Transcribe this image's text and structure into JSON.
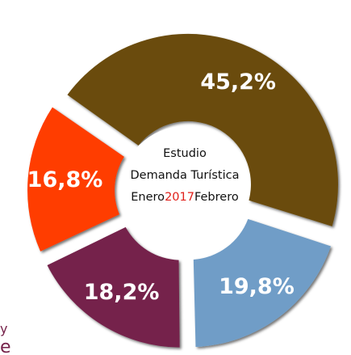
{
  "chart_data": {
    "type": "donut",
    "categories": [
      null,
      null,
      null,
      null
    ],
    "values": [
      45.2,
      19.8,
      18.2,
      16.8
    ],
    "value_labels": [
      "45,2%",
      "19,8%",
      "18,2%",
      "16,8%"
    ],
    "colors": [
      "#6b4c0a",
      "#6f9dc7",
      "#74234b",
      "#ff3c00"
    ],
    "center_text": [
      "Estudio",
      "Demanda Turística",
      [
        "Enero",
        "2017",
        "Febrero"
      ]
    ],
    "center_highlight_color": "#e0201a",
    "fragments": [
      "y",
      "e"
    ]
  }
}
